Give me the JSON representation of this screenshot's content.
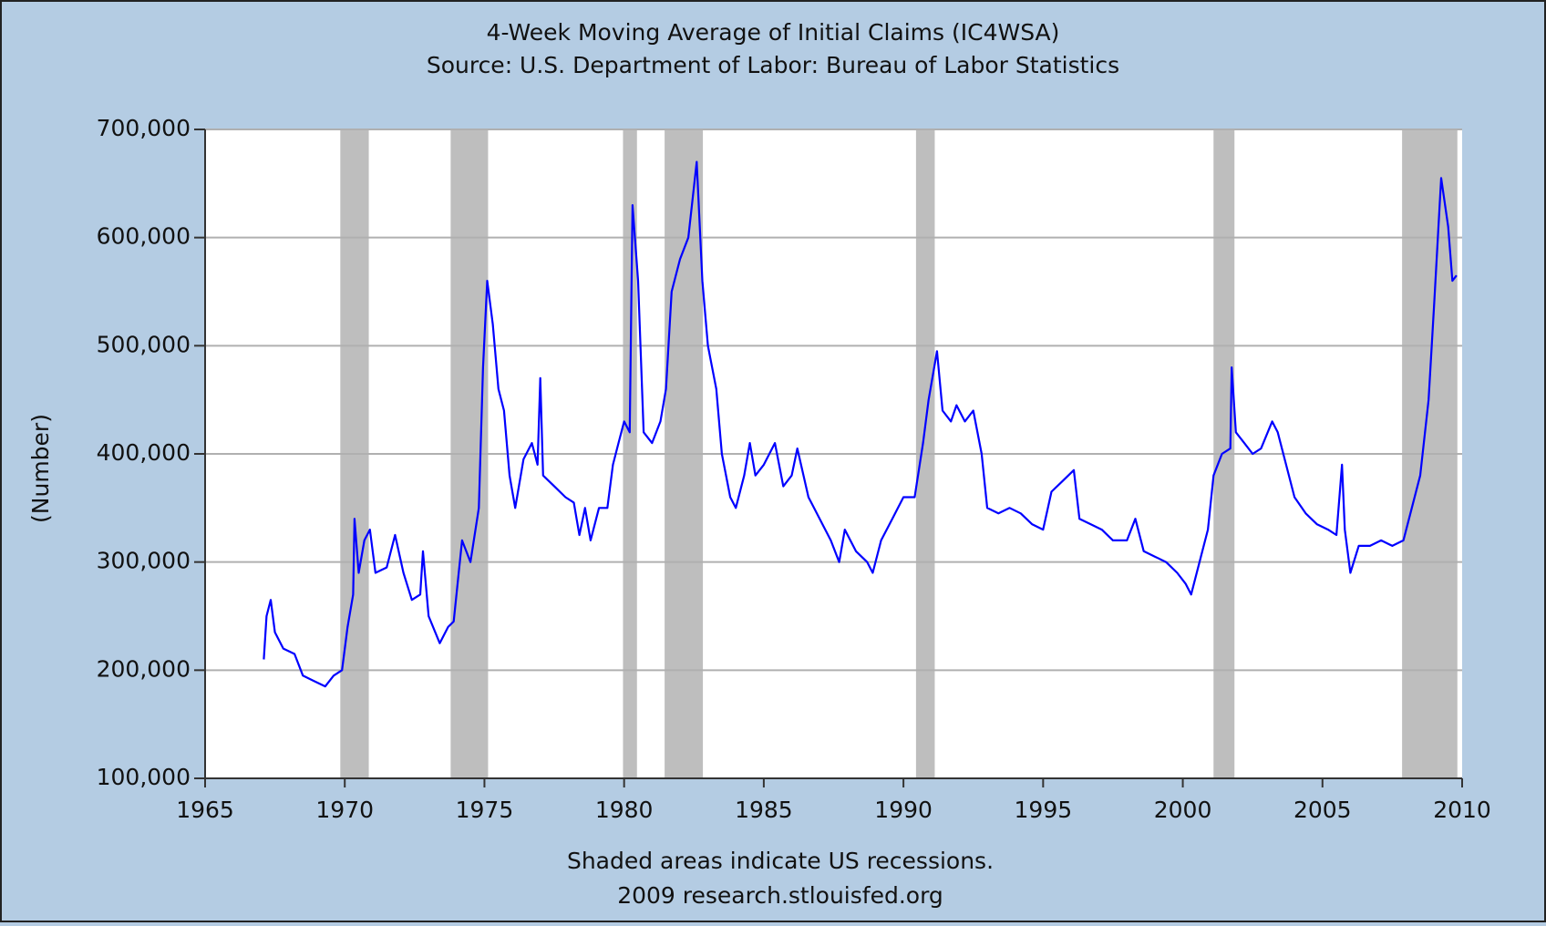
{
  "chart_data": {
    "type": "line",
    "title": "4-Week Moving Average of Initial Claims (IC4WSA)",
    "subtitle": "Source: U.S. Department of Labor: Bureau of Labor Statistics",
    "y_label": "(Number)",
    "notes": [
      "Shaded areas indicate US recessions.",
      "2009 research.stlouisfed.org"
    ],
    "xlim": [
      1965,
      2010
    ],
    "xticks": [
      1965,
      1970,
      1975,
      1980,
      1985,
      1990,
      1995,
      2000,
      2005,
      2010
    ],
    "ylim": [
      100000,
      700000
    ],
    "yticks": [
      {
        "value": 100000,
        "label": "100,000"
      },
      {
        "value": 200000,
        "label": "200,000"
      },
      {
        "value": 300000,
        "label": "300,000"
      },
      {
        "value": 400000,
        "label": "400,000"
      },
      {
        "value": 500000,
        "label": "500,000"
      },
      {
        "value": 600000,
        "label": "600,000"
      },
      {
        "value": 700000,
        "label": "700,000"
      }
    ],
    "grid": true,
    "shaded_periods": [
      [
        1969.84,
        1970.86
      ],
      [
        1973.79,
        1975.13
      ],
      [
        1979.96,
        1980.46
      ],
      [
        1981.45,
        1982.82
      ],
      [
        1990.45,
        1991.12
      ],
      [
        2001.1,
        2001.85
      ],
      [
        2007.85,
        2009.83
      ]
    ],
    "shade_color": "#bebebe",
    "x": [
      1967.1,
      1967.2,
      1967.35,
      1967.5,
      1967.8,
      1968.2,
      1968.5,
      1968.9,
      1969.3,
      1969.6,
      1969.9,
      1970.1,
      1970.3,
      1970.35,
      1970.5,
      1970.7,
      1970.9,
      1971.1,
      1971.5,
      1971.8,
      1972.1,
      1972.4,
      1972.7,
      1972.8,
      1973.0,
      1973.4,
      1973.7,
      1973.9,
      1974.2,
      1974.5,
      1974.8,
      1974.95,
      1975.1,
      1975.3,
      1975.5,
      1975.7,
      1975.9,
      1976.1,
      1976.4,
      1976.7,
      1976.9,
      1977.0,
      1977.1,
      1977.5,
      1977.9,
      1978.2,
      1978.4,
      1978.6,
      1978.8,
      1979.1,
      1979.4,
      1979.6,
      1979.8,
      1980.0,
      1980.2,
      1980.3,
      1980.5,
      1980.7,
      1981.0,
      1981.3,
      1981.5,
      1981.7,
      1982.0,
      1982.3,
      1982.6,
      1982.8,
      1983.0,
      1983.3,
      1983.5,
      1983.8,
      1984.0,
      1984.3,
      1984.5,
      1984.7,
      1985.0,
      1985.4,
      1985.7,
      1986.0,
      1986.2,
      1986.6,
      1987.0,
      1987.4,
      1987.7,
      1987.9,
      1988.3,
      1988.7,
      1988.9,
      1989.2,
      1989.6,
      1990.0,
      1990.4,
      1990.7,
      1990.9,
      1991.2,
      1991.4,
      1991.7,
      1991.9,
      1992.2,
      1992.5,
      1992.8,
      1993.0,
      1993.4,
      1993.8,
      1994.2,
      1994.6,
      1995.0,
      1995.3,
      1995.7,
      1996.1,
      1996.3,
      1996.7,
      1997.1,
      1997.5,
      1998.0,
      1998.3,
      1998.6,
      1999.0,
      1999.4,
      1999.8,
      2000.1,
      2000.3,
      2000.6,
      2000.9,
      2001.1,
      2001.4,
      2001.7,
      2001.75,
      2001.9,
      2002.2,
      2002.5,
      2002.8,
      2003.2,
      2003.4,
      2003.7,
      2004.0,
      2004.4,
      2004.8,
      2005.2,
      2005.5,
      2005.7,
      2005.8,
      2006.0,
      2006.3,
      2006.7,
      2007.1,
      2007.5,
      2007.9,
      2008.2,
      2008.5,
      2008.8,
      2009.0,
      2009.25,
      2009.5,
      2009.65,
      2009.8
    ],
    "series": [
      {
        "color": "#0000ff",
        "values": [
          210000,
          250000,
          265000,
          235000,
          220000,
          215000,
          195000,
          190000,
          185000,
          195000,
          200000,
          240000,
          270000,
          340000,
          290000,
          320000,
          330000,
          290000,
          295000,
          325000,
          290000,
          265000,
          270000,
          310000,
          250000,
          225000,
          240000,
          245000,
          320000,
          300000,
          350000,
          480000,
          560000,
          520000,
          460000,
          440000,
          380000,
          350000,
          395000,
          410000,
          390000,
          470000,
          380000,
          370000,
          360000,
          355000,
          325000,
          350000,
          320000,
          350000,
          350000,
          390000,
          410000,
          430000,
          420000,
          630000,
          560000,
          420000,
          410000,
          430000,
          460000,
          550000,
          580000,
          600000,
          670000,
          560000,
          500000,
          460000,
          400000,
          360000,
          350000,
          380000,
          410000,
          380000,
          390000,
          410000,
          370000,
          380000,
          405000,
          360000,
          340000,
          320000,
          300000,
          330000,
          310000,
          300000,
          290000,
          320000,
          340000,
          360000,
          360000,
          410000,
          450000,
          495000,
          440000,
          430000,
          445000,
          430000,
          440000,
          400000,
          350000,
          345000,
          350000,
          345000,
          335000,
          330000,
          365000,
          375000,
          385000,
          340000,
          335000,
          330000,
          320000,
          320000,
          340000,
          310000,
          305000,
          300000,
          290000,
          280000,
          270000,
          300000,
          330000,
          380000,
          400000,
          405000,
          480000,
          420000,
          410000,
          400000,
          405000,
          430000,
          420000,
          390000,
          360000,
          345000,
          335000,
          330000,
          325000,
          390000,
          330000,
          290000,
          315000,
          315000,
          320000,
          315000,
          320000,
          350000,
          380000,
          450000,
          540000,
          655000,
          610000,
          560000,
          565000
        ]
      }
    ]
  }
}
